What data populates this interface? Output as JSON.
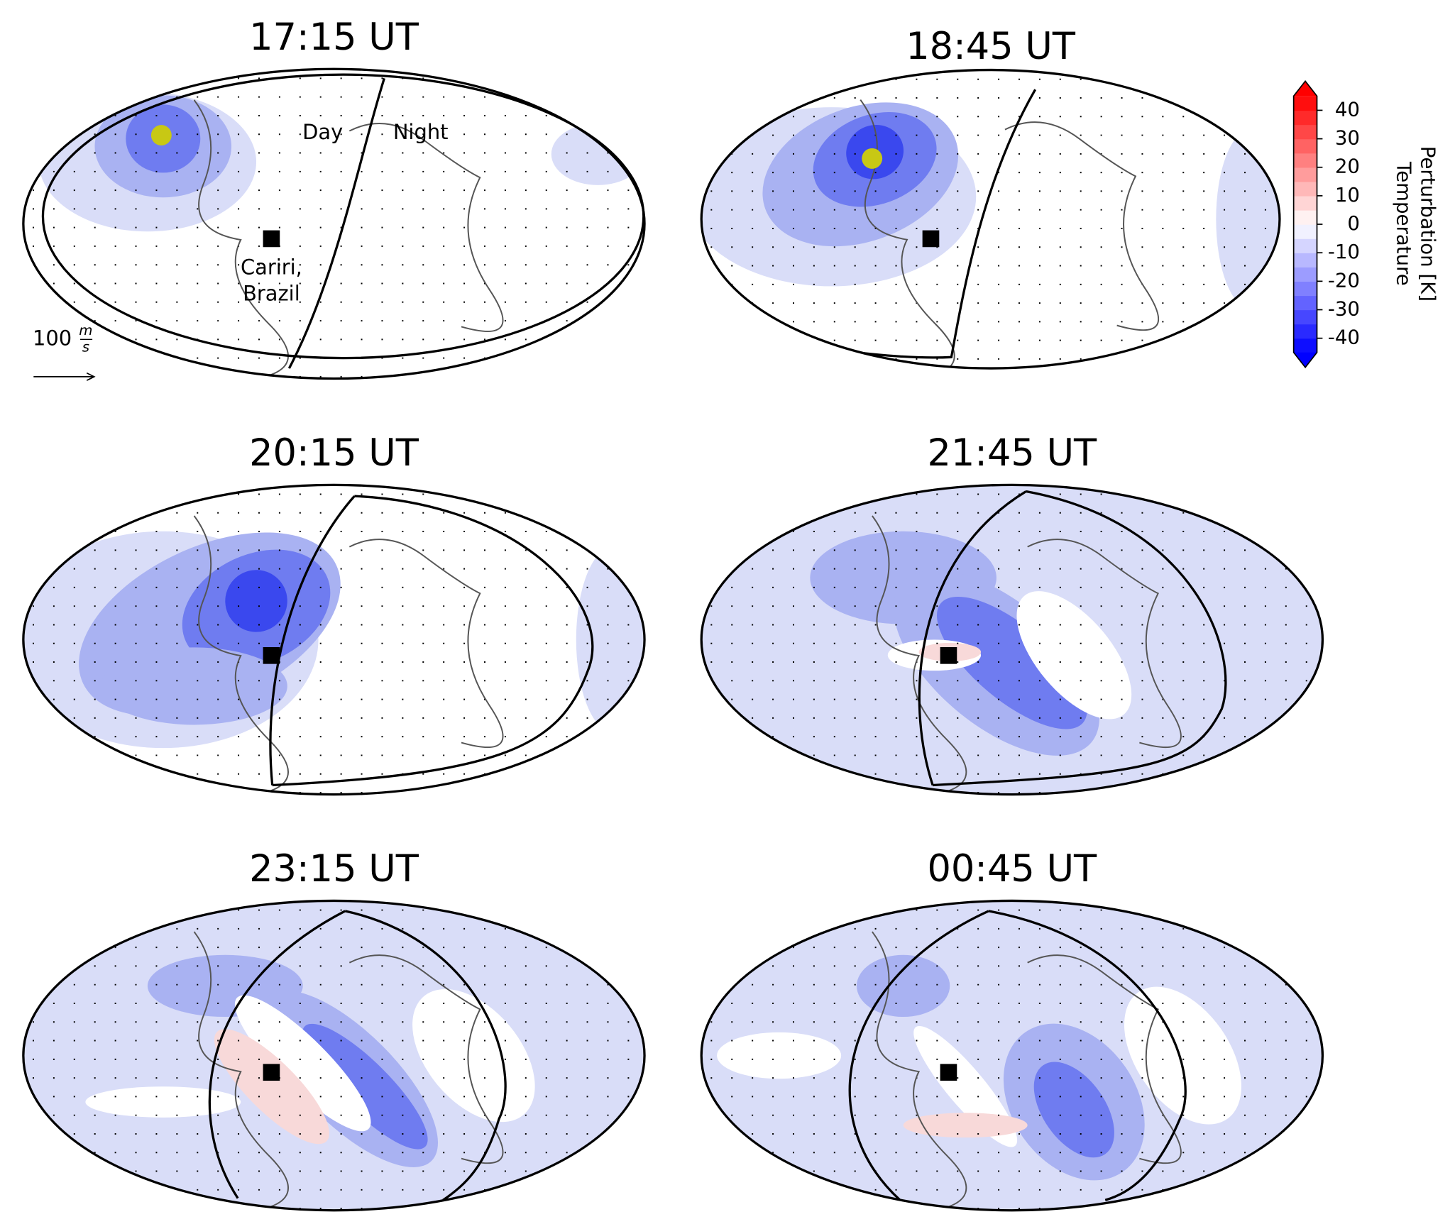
{
  "panels": [
    {
      "title": "17:15 UT",
      "annotations": {
        "day": "Day",
        "night": "Night",
        "site": [
          "Cariri,",
          "Brazil"
        ],
        "scale": {
          "value": "100",
          "numerator": "m",
          "denominator": "s"
        }
      }
    },
    {
      "title": "18:45 UT"
    },
    {
      "title": "20:15 UT"
    },
    {
      "title": "21:45 UT"
    },
    {
      "title": "23:15 UT"
    },
    {
      "title": "00:45 UT"
    }
  ],
  "colorbar": {
    "label": [
      "Temperature",
      "Perturbation [K]"
    ],
    "range": [
      -45,
      45
    ],
    "ticks": [
      40,
      30,
      20,
      10,
      0,
      -10,
      -20,
      -30,
      -40
    ]
  }
}
